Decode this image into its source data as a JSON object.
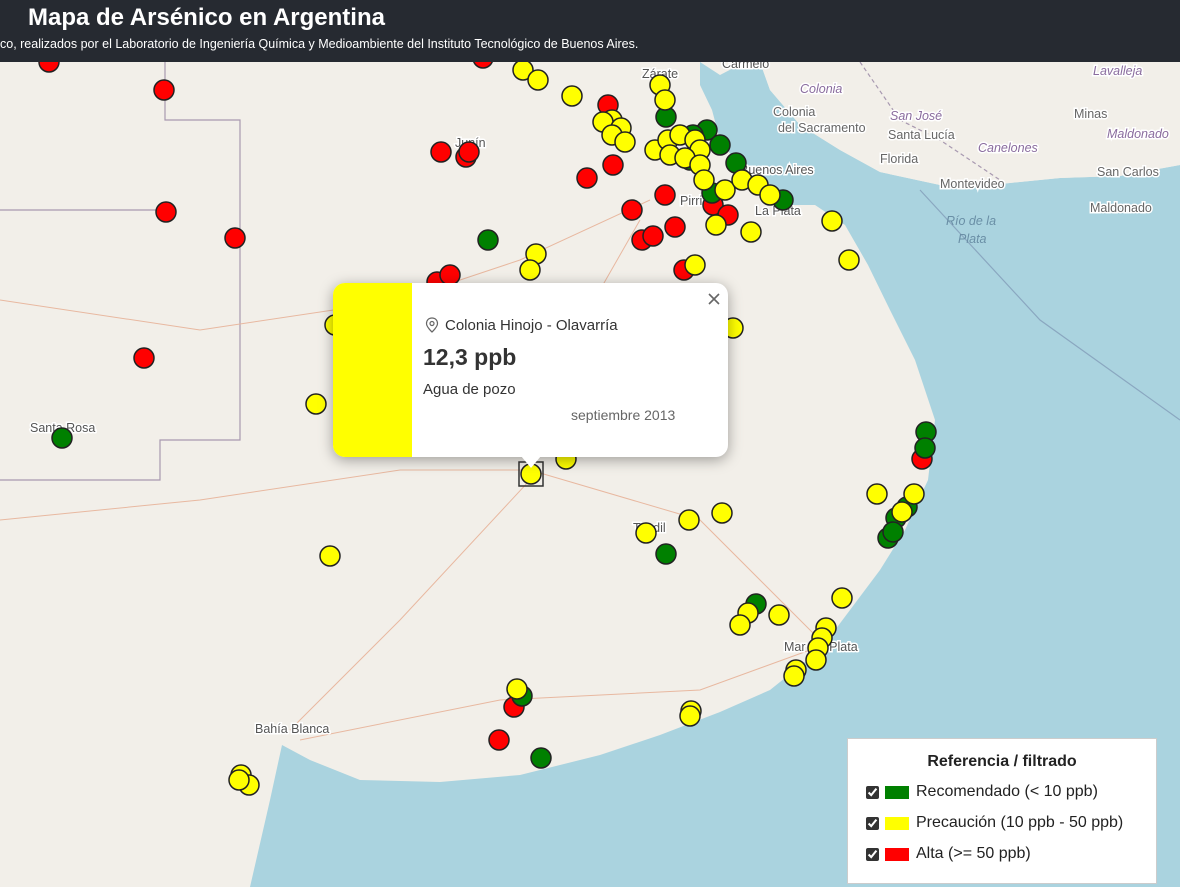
{
  "header": {
    "title": "Mapa de Arsénico en Argentina",
    "subtitle": "co, realizados por el Laboratorio de Ingeniería Química y Medioambiente del Instituto Tecnológico de Buenos Aires."
  },
  "places": [
    "Zárate",
    "Carmelo",
    "Colonia",
    "Lavalleja",
    "Colonia",
    "del Sacramento",
    "San José",
    "Santa Lucía",
    "Minas",
    "Maldonado",
    "Canelones",
    "Florida",
    "San Carlos",
    "Montevideo",
    "Maldonado",
    "Río de la",
    "Plata",
    "La Plata",
    "Buenos Aires",
    "Junín",
    "Pirri",
    "Santa Rosa",
    "Tandil",
    "Mar del Plata",
    "Bahía Blanca"
  ],
  "popup": {
    "location": "Colonia Hinojo - Olavarría",
    "value": "12,3 ppb",
    "source": "Agua de pozo",
    "date": "septiembre 2013",
    "color": "#ffff00"
  },
  "legend": {
    "title": "Referencia / filtrado",
    "items": [
      {
        "label": "Recomendado (< 10 ppb)",
        "color": "#008000"
      },
      {
        "label": "Precaución (10 ppb - 50 ppb)",
        "color": "#ffff00"
      },
      {
        "label": "Alta (>= 50 ppb)",
        "color": "#ff0000"
      }
    ]
  }
}
